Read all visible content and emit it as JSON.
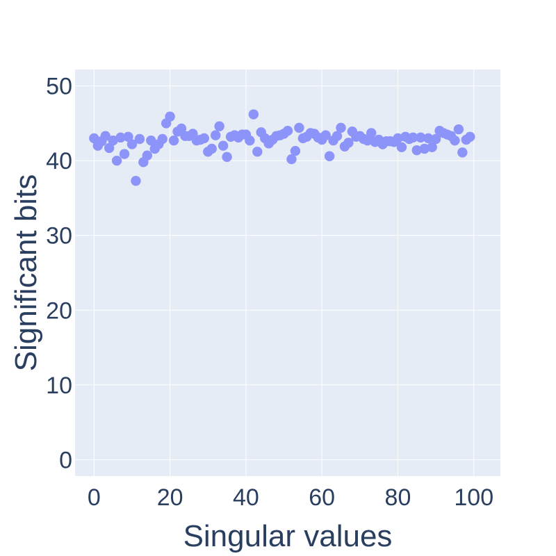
{
  "chart_data": {
    "type": "scatter",
    "title": "",
    "xlabel": "Singular values",
    "ylabel": "Significant bits",
    "xlim": [
      -5,
      107
    ],
    "ylim": [
      -2.2,
      52.2
    ],
    "xticks": [
      0,
      20,
      40,
      60,
      80,
      100
    ],
    "yticks": [
      0,
      10,
      20,
      30,
      40,
      50
    ],
    "grid": true,
    "legend": "none",
    "colors": {
      "plot_bg": "#e5ecf6",
      "grid": "#ffffff",
      "marker": "#8c94f9",
      "text": "#2a3f5f"
    },
    "series": [
      {
        "x": [
          0,
          1,
          2,
          3,
          4,
          5,
          6,
          7,
          8,
          9,
          10,
          11,
          12,
          13,
          14,
          15,
          16,
          17,
          18,
          19,
          20,
          21,
          22,
          23,
          24,
          25,
          26,
          27,
          28,
          29,
          30,
          31,
          32,
          33,
          34,
          35,
          36,
          37,
          38,
          39,
          40,
          41,
          42,
          43,
          44,
          45,
          46,
          47,
          48,
          49,
          50,
          51,
          52,
          53,
          54,
          55,
          56,
          57,
          58,
          59,
          60,
          61,
          62,
          63,
          64,
          65,
          66,
          67,
          68,
          69,
          70,
          71,
          72,
          73,
          74,
          75,
          76,
          77,
          78,
          79,
          80,
          81,
          82,
          83,
          84,
          85,
          86,
          87,
          88,
          89,
          90,
          91,
          92,
          93,
          94,
          95,
          96,
          97,
          98,
          99
        ],
        "y": [
          43.0,
          42.0,
          42.6,
          43.3,
          41.7,
          42.7,
          40.0,
          43.1,
          40.9,
          43.2,
          42.2,
          37.3,
          42.9,
          39.8,
          40.7,
          42.7,
          41.6,
          42.2,
          42.9,
          45.0,
          45.9,
          42.7,
          43.9,
          44.3,
          43.3,
          43.3,
          43.6,
          42.7,
          42.8,
          43.0,
          41.2,
          41.6,
          43.4,
          44.6,
          42.0,
          40.5,
          43.2,
          43.4,
          43.1,
          43.5,
          43.5,
          42.7,
          46.2,
          41.2,
          43.8,
          43.0,
          42.3,
          42.8,
          43.3,
          43.4,
          43.6,
          44.0,
          40.2,
          41.3,
          44.4,
          43.0,
          43.2,
          43.7,
          43.6,
          43.1,
          42.8,
          43.4,
          40.6,
          42.7,
          43.3,
          44.4,
          41.9,
          42.4,
          43.9,
          43.2,
          43.3,
          42.9,
          42.7,
          43.7,
          42.5,
          42.8,
          42.2,
          42.6,
          42.6,
          42.5,
          43.0,
          41.8,
          43.2,
          42.9,
          43.1,
          41.4,
          43.1,
          41.6,
          43.0,
          41.8,
          42.9,
          44.0,
          43.7,
          43.5,
          43.3,
          42.7,
          44.2,
          41.1,
          42.8,
          43.2
        ]
      }
    ]
  }
}
